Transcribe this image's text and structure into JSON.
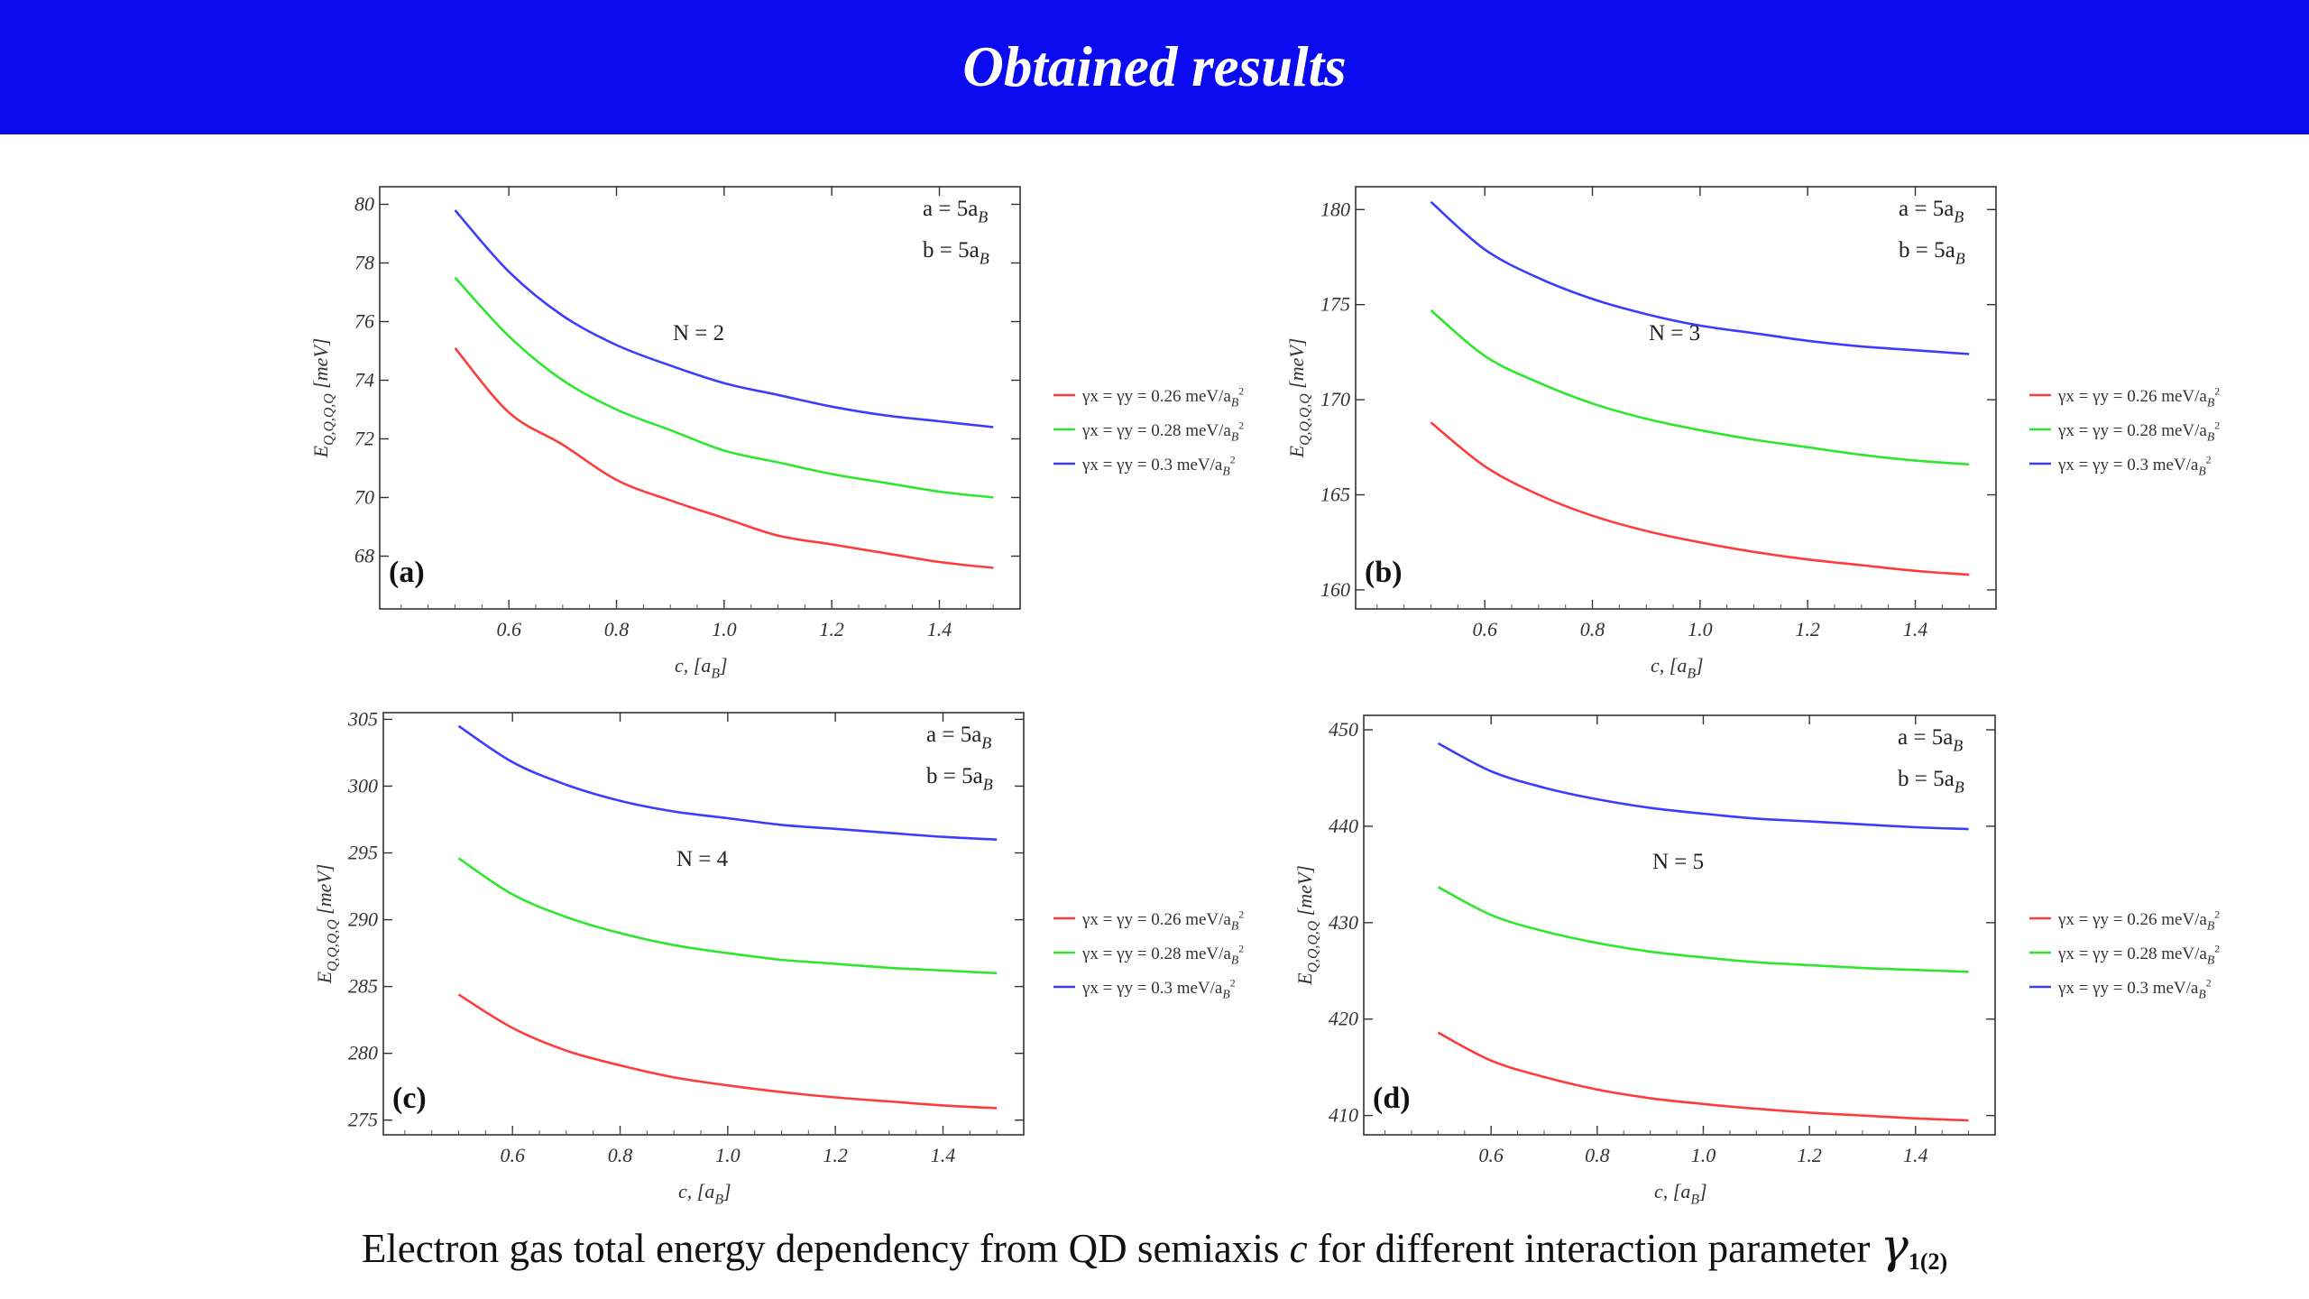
{
  "header": {
    "title": "Obtained results"
  },
  "caption": {
    "text_before": "Electron gas total energy dependency from QD semiaxis ",
    "variable": "c",
    "text_after": " for different interaction parameter ",
    "gamma_symbol": "γ",
    "gamma_subscript": "1(2)"
  },
  "colors": {
    "banner": "#0b0bf0",
    "series": [
      "#ff3c3c",
      "#2ee62e",
      "#3c3cff"
    ]
  },
  "chart_data": [
    {
      "type": "line",
      "panel_label": "(a)",
      "annotation": "N = 2",
      "params": [
        "a = 5a_B",
        "b = 5a_B"
      ],
      "xlabel": "c, [a_B]",
      "ylabel": "E_{Q,Q,Q,Q} [meV]",
      "xlim": [
        0.36,
        1.55
      ],
      "ylim": [
        66.2,
        80.6
      ],
      "xticks": [
        "0.6",
        "0.8",
        "1.0",
        "1.2",
        "1.4"
      ],
      "yticks": [
        "68",
        "70",
        "72",
        "74",
        "76",
        "78",
        "80"
      ],
      "legend": [
        "γx = γy = 0.26 meV/a_B^2",
        "γx = γy = 0.28 meV/a_B^2",
        "γx = γy = 0.3 meV/a_B^2"
      ],
      "legend_position": "right, outside",
      "series": [
        {
          "name": "γx = γy = 0.26 meV/a_B^2",
          "x": [
            0.5,
            0.6,
            0.7,
            0.8,
            0.9,
            1.0,
            1.1,
            1.2,
            1.3,
            1.4,
            1.5
          ],
          "values": [
            75.1,
            72.9,
            71.8,
            70.6,
            69.9,
            69.3,
            68.7,
            68.4,
            68.1,
            67.8,
            67.6
          ]
        },
        {
          "name": "γx = γy = 0.28 meV/a_B^2",
          "x": [
            0.5,
            0.6,
            0.7,
            0.8,
            0.9,
            1.0,
            1.1,
            1.2,
            1.3,
            1.4,
            1.5
          ],
          "values": [
            77.5,
            75.5,
            74.0,
            73.0,
            72.3,
            71.6,
            71.2,
            70.8,
            70.5,
            70.2,
            70.0
          ]
        },
        {
          "name": "γx = γy = 0.3 meV/a_B^2",
          "x": [
            0.5,
            0.6,
            0.7,
            0.8,
            0.9,
            1.0,
            1.1,
            1.2,
            1.3,
            1.4,
            1.5
          ],
          "values": [
            79.8,
            77.7,
            76.2,
            75.2,
            74.5,
            73.9,
            73.5,
            73.1,
            72.8,
            72.6,
            72.4
          ]
        }
      ]
    },
    {
      "type": "line",
      "panel_label": "(b)",
      "annotation": "N = 3",
      "params": [
        "a = 5a_B",
        "b = 5a_B"
      ],
      "xlabel": "c, [a_B]",
      "ylabel": "E_{Q,Q,Q,Q} [meV]",
      "xlim": [
        0.36,
        1.55
      ],
      "ylim": [
        159.0,
        181.2
      ],
      "xticks": [
        "0.6",
        "0.8",
        "1.0",
        "1.2",
        "1.4"
      ],
      "yticks": [
        "160",
        "165",
        "170",
        "175",
        "180"
      ],
      "legend": [
        "γx = γy = 0.26 meV/a_B^2",
        "γx = γy = 0.28 meV/a_B^2",
        "γx = γy = 0.3 meV/a_B^2"
      ],
      "legend_position": "right, outside",
      "series": [
        {
          "name": "γx = γy = 0.26 meV/a_B^2",
          "x": [
            0.5,
            0.6,
            0.7,
            0.8,
            0.9,
            1.0,
            1.1,
            1.2,
            1.3,
            1.4,
            1.5
          ],
          "values": [
            168.8,
            166.5,
            165.0,
            163.9,
            163.1,
            162.5,
            162.0,
            161.6,
            161.3,
            161.0,
            160.8
          ]
        },
        {
          "name": "γx = γy = 0.28 meV/a_B^2",
          "x": [
            0.5,
            0.6,
            0.7,
            0.8,
            0.9,
            1.0,
            1.1,
            1.2,
            1.3,
            1.4,
            1.5
          ],
          "values": [
            174.7,
            172.3,
            170.9,
            169.8,
            169.0,
            168.4,
            167.9,
            167.5,
            167.1,
            166.8,
            166.6
          ]
        },
        {
          "name": "γx = γy = 0.3 meV/a_B^2",
          "x": [
            0.5,
            0.6,
            0.7,
            0.8,
            0.9,
            1.0,
            1.1,
            1.2,
            1.3,
            1.4,
            1.5
          ],
          "values": [
            180.4,
            177.9,
            176.4,
            175.3,
            174.5,
            173.9,
            173.5,
            173.1,
            172.8,
            172.6,
            172.4
          ]
        }
      ]
    },
    {
      "type": "line",
      "panel_label": "(c)",
      "annotation": "N = 4",
      "params": [
        "a = 5a_B",
        "b = 5a_B"
      ],
      "xlabel": "c, [a_B]",
      "ylabel": "E_{Q,Q,Q,Q} [meV]",
      "xlim": [
        0.36,
        1.55
      ],
      "ylim": [
        273.9,
        305.5
      ],
      "xticks": [
        "0.6",
        "0.8",
        "1.0",
        "1.2",
        "1.4"
      ],
      "yticks": [
        "275",
        "280",
        "285",
        "290",
        "295",
        "300",
        "305"
      ],
      "legend": [
        "γx = γy = 0.26 meV/a_B^2",
        "γx = γy = 0.28 meV/a_B^2",
        "γx = γy = 0.3 meV/a_B^2"
      ],
      "legend_position": "right, outside",
      "series": [
        {
          "name": "γx = γy = 0.26 meV/a_B^2",
          "x": [
            0.5,
            0.6,
            0.7,
            0.8,
            0.9,
            1.0,
            1.1,
            1.2,
            1.3,
            1.4,
            1.5
          ],
          "values": [
            284.4,
            281.9,
            280.2,
            279.1,
            278.2,
            277.6,
            277.1,
            276.7,
            276.4,
            276.1,
            275.9
          ]
        },
        {
          "name": "γx = γy = 0.28 meV/a_B^2",
          "x": [
            0.5,
            0.6,
            0.7,
            0.8,
            0.9,
            1.0,
            1.1,
            1.2,
            1.3,
            1.4,
            1.5
          ],
          "values": [
            294.6,
            291.9,
            290.2,
            289.0,
            288.1,
            287.5,
            287.0,
            286.7,
            286.4,
            286.2,
            286.0
          ]
        },
        {
          "name": "γx = γy = 0.3 meV/a_B^2",
          "x": [
            0.5,
            0.6,
            0.7,
            0.8,
            0.9,
            1.0,
            1.1,
            1.2,
            1.3,
            1.4,
            1.5
          ],
          "values": [
            304.5,
            301.8,
            300.1,
            298.9,
            298.1,
            297.6,
            297.1,
            296.8,
            296.5,
            296.2,
            296.0
          ]
        }
      ]
    },
    {
      "type": "line",
      "panel_label": "(d)",
      "annotation": "N = 5",
      "params": [
        "a = 5a_B",
        "b = 5a_B"
      ],
      "xlabel": "c, [a_B]",
      "ylabel": "E_{Q,Q,Q,Q} [meV]",
      "xlim": [
        0.36,
        1.55
      ],
      "ylim": [
        408.0,
        451.5
      ],
      "xticks": [
        "0.6",
        "0.8",
        "1.0",
        "1.2",
        "1.4"
      ],
      "yticks": [
        "410",
        "420",
        "430",
        "440",
        "450"
      ],
      "legend": [
        "γx = γy = 0.26 meV/a_B^2",
        "γx = γy = 0.28 meV/a_B^2",
        "γx = γy = 0.3 meV/a_B^2"
      ],
      "legend_position": "right, outside",
      "series": [
        {
          "name": "γx = γy = 0.26 meV/a_B^2",
          "x": [
            0.5,
            0.6,
            0.7,
            0.8,
            0.9,
            1.0,
            1.1,
            1.2,
            1.3,
            1.4,
            1.5
          ],
          "values": [
            418.6,
            415.7,
            414.0,
            412.7,
            411.8,
            411.2,
            410.7,
            410.3,
            410.0,
            409.7,
            409.5
          ]
        },
        {
          "name": "γx = γy = 0.28 meV/a_B^2",
          "x": [
            0.5,
            0.6,
            0.7,
            0.8,
            0.9,
            1.0,
            1.1,
            1.2,
            1.3,
            1.4,
            1.5
          ],
          "values": [
            433.7,
            430.8,
            429.1,
            427.9,
            427.0,
            426.4,
            425.9,
            425.6,
            425.3,
            425.1,
            424.9
          ]
        },
        {
          "name": "γx = γy = 0.3 meV/a_B^2",
          "x": [
            0.5,
            0.6,
            0.7,
            0.8,
            0.9,
            1.0,
            1.1,
            1.2,
            1.3,
            1.4,
            1.5
          ],
          "values": [
            448.6,
            445.7,
            444.0,
            442.8,
            441.9,
            441.3,
            440.8,
            440.5,
            440.2,
            439.9,
            439.7
          ]
        }
      ]
    }
  ]
}
